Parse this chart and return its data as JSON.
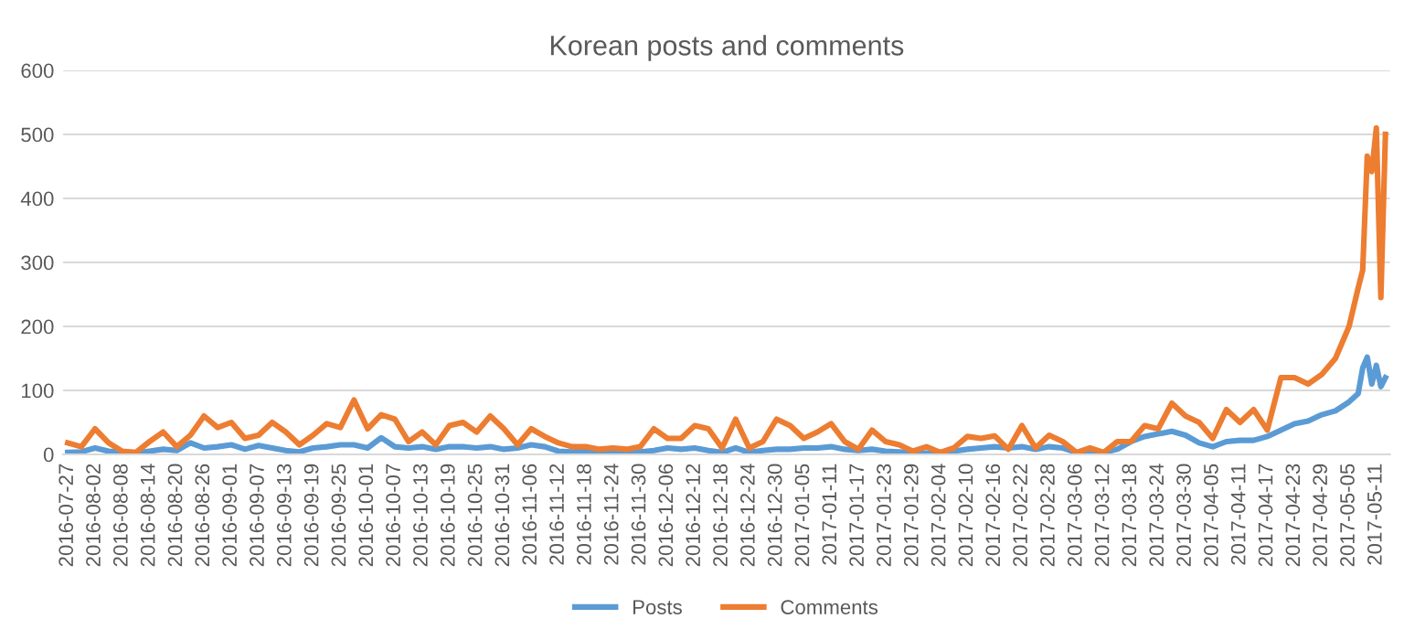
{
  "chart_data": {
    "type": "line",
    "title": "Korean posts and comments",
    "x": [
      "2016-07-27",
      "2016-07-30",
      "2016-08-02",
      "2016-08-05",
      "2016-08-08",
      "2016-08-11",
      "2016-08-14",
      "2016-08-17",
      "2016-08-20",
      "2016-08-23",
      "2016-08-26",
      "2016-08-29",
      "2016-09-01",
      "2016-09-04",
      "2016-09-07",
      "2016-09-10",
      "2016-09-13",
      "2016-09-16",
      "2016-09-19",
      "2016-09-22",
      "2016-09-25",
      "2016-09-28",
      "2016-10-01",
      "2016-10-04",
      "2016-10-07",
      "2016-10-10",
      "2016-10-13",
      "2016-10-16",
      "2016-10-19",
      "2016-10-22",
      "2016-10-25",
      "2016-10-28",
      "2016-10-31",
      "2016-11-03",
      "2016-11-06",
      "2016-11-09",
      "2016-11-12",
      "2016-11-15",
      "2016-11-18",
      "2016-11-21",
      "2016-11-24",
      "2016-11-27",
      "2016-11-30",
      "2016-12-03",
      "2016-12-06",
      "2016-12-09",
      "2016-12-12",
      "2016-12-15",
      "2016-12-18",
      "2016-12-21",
      "2016-12-24",
      "2016-12-27",
      "2016-12-30",
      "2017-01-02",
      "2017-01-05",
      "2017-01-08",
      "2017-01-11",
      "2017-01-14",
      "2017-01-17",
      "2017-01-20",
      "2017-01-23",
      "2017-01-26",
      "2017-01-29",
      "2017-02-01",
      "2017-02-04",
      "2017-02-07",
      "2017-02-10",
      "2017-02-13",
      "2017-02-16",
      "2017-02-19",
      "2017-02-22",
      "2017-02-25",
      "2017-02-28",
      "2017-03-03",
      "2017-03-06",
      "2017-03-09",
      "2017-03-12",
      "2017-03-15",
      "2017-03-18",
      "2017-03-21",
      "2017-03-24",
      "2017-03-27",
      "2017-03-30",
      "2017-04-02",
      "2017-04-05",
      "2017-04-08",
      "2017-04-11",
      "2017-04-14",
      "2017-04-17",
      "2017-04-20",
      "2017-04-23",
      "2017-04-26",
      "2017-04-29",
      "2017-05-02",
      "2017-05-05",
      "2017-05-07",
      "2017-05-08",
      "2017-05-09",
      "2017-05-10",
      "2017-05-11",
      "2017-05-12",
      "2017-05-13"
    ],
    "series": [
      {
        "name": "Posts",
        "color": "#5b9bd5",
        "values": [
          3,
          4,
          10,
          5,
          3,
          2,
          5,
          8,
          6,
          18,
          10,
          12,
          15,
          8,
          14,
          10,
          6,
          4,
          10,
          12,
          15,
          15,
          10,
          26,
          12,
          10,
          12,
          8,
          12,
          12,
          10,
          12,
          8,
          10,
          15,
          12,
          5,
          4,
          5,
          3,
          2,
          5,
          4,
          6,
          10,
          8,
          10,
          6,
          3,
          10,
          3,
          6,
          8,
          8,
          10,
          10,
          12,
          8,
          6,
          8,
          5,
          4,
          2,
          2,
          1,
          5,
          8,
          10,
          12,
          10,
          12,
          8,
          12,
          10,
          3,
          5,
          3,
          8,
          20,
          28,
          32,
          36,
          30,
          18,
          12,
          20,
          22,
          22,
          28,
          38,
          48,
          52,
          62,
          68,
          82,
          95,
          135,
          152,
          110,
          139,
          106,
          120
        ]
      },
      {
        "name": "Comments",
        "color": "#ed7d31",
        "values": [
          18,
          12,
          40,
          18,
          5,
          3,
          20,
          35,
          12,
          30,
          60,
          42,
          50,
          25,
          30,
          50,
          35,
          15,
          30,
          48,
          42,
          85,
          40,
          62,
          55,
          20,
          35,
          15,
          45,
          50,
          35,
          60,
          40,
          15,
          40,
          28,
          18,
          12,
          12,
          8,
          10,
          8,
          12,
          40,
          25,
          25,
          45,
          40,
          10,
          55,
          10,
          20,
          55,
          45,
          25,
          35,
          48,
          20,
          8,
          38,
          20,
          15,
          5,
          12,
          3,
          10,
          28,
          25,
          29,
          8,
          45,
          10,
          30,
          20,
          3,
          10,
          3,
          20,
          20,
          45,
          40,
          80,
          60,
          50,
          25,
          70,
          50,
          70,
          38,
          120,
          120,
          110,
          125,
          150,
          200,
          260,
          288,
          466,
          442,
          510,
          245,
          500
        ]
      }
    ],
    "xlim": [
      "2016-07-26",
      "2017-05-14"
    ],
    "xticks": [
      "2016-07-27",
      "2016-08-02",
      "2016-08-08",
      "2016-08-14",
      "2016-08-20",
      "2016-08-26",
      "2016-09-01",
      "2016-09-07",
      "2016-09-13",
      "2016-09-19",
      "2016-09-25",
      "2016-10-01",
      "2016-10-07",
      "2016-10-13",
      "2016-10-19",
      "2016-10-25",
      "2016-10-31",
      "2016-11-06",
      "2016-11-12",
      "2016-11-18",
      "2016-11-24",
      "2016-11-30",
      "2016-12-06",
      "2016-12-12",
      "2016-12-18",
      "2016-12-24",
      "2016-12-30",
      "2017-01-05",
      "2017-01-11",
      "2017-01-17",
      "2017-01-23",
      "2017-01-29",
      "2017-02-04",
      "2017-02-10",
      "2017-02-16",
      "2017-02-22",
      "2017-02-28",
      "2017-03-06",
      "2017-03-12",
      "2017-03-18",
      "2017-03-24",
      "2017-03-30",
      "2017-04-05",
      "2017-04-11",
      "2017-04-17",
      "2017-04-23",
      "2017-04-29",
      "2017-05-05",
      "2017-05-11"
    ],
    "ylim": [
      0,
      600
    ],
    "yticks": [
      0,
      100,
      200,
      300,
      400,
      500,
      600
    ],
    "grid": "y",
    "legend": "bottom",
    "marker": "none",
    "line_style": "solid"
  }
}
